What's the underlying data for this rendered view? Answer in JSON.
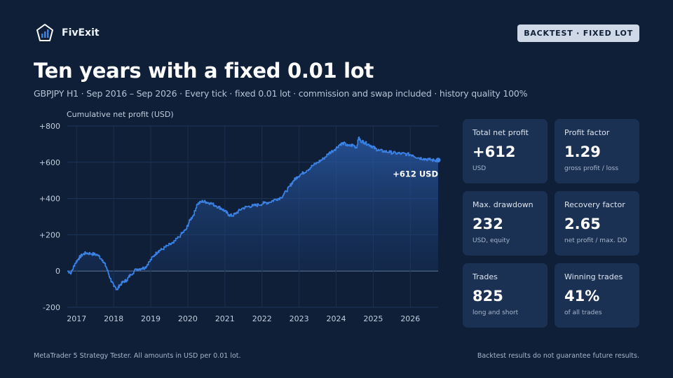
{
  "brand": {
    "name": "FivExit",
    "logo_icon": "pentagon-chart-logo-icon"
  },
  "badge": "BACKTEST · FIXED LOT",
  "title": "Ten years with a fixed 0.01 lot",
  "subtitle": "GBPJPY H1 · Sep 2016 – Sep 2026 · Every tick · fixed 0.01 lot · commission and swap included · history quality 100%",
  "colors": {
    "background": "#0f1f38",
    "line": "#3b82e6",
    "card": "#1b3153",
    "badge": "#cfd8e6"
  },
  "chart_data": {
    "type": "area",
    "ylabel": "Cumulative net profit (USD)",
    "ylim": [
      -200,
      800
    ],
    "yticks": [
      800,
      600,
      400,
      200,
      0,
      -200
    ],
    "ytick_labels": [
      "+800",
      "+600",
      "+400",
      "+200",
      "0",
      "-200"
    ],
    "xlim": [
      2016.75,
      2026.75
    ],
    "xticks": [
      2017,
      2018,
      2019,
      2020,
      2021,
      2022,
      2023,
      2024,
      2025,
      2026
    ],
    "xtick_labels": [
      "2017",
      "2018",
      "2019",
      "2020",
      "2021",
      "2022",
      "2023",
      "2024",
      "2025",
      "2026"
    ],
    "grid": true,
    "end_label": "+612 USD",
    "series": [
      {
        "x": [
          2016.75,
          2016.85,
          2016.95,
          2017.05,
          2017.15,
          2017.25,
          2017.4,
          2017.55,
          2017.7,
          2017.8,
          2017.9,
          2018.0,
          2018.1,
          2018.15,
          2018.25,
          2018.35,
          2018.45,
          2018.6,
          2018.75,
          2018.85,
          2018.95,
          2019.1,
          2019.2,
          2019.3,
          2019.45,
          2019.6,
          2019.8,
          2019.95,
          2020.05,
          2020.15,
          2020.25,
          2020.4,
          2020.5,
          2020.6,
          2020.75,
          2020.9,
          2021.0,
          2021.1,
          2021.2,
          2021.3,
          2021.45,
          2021.6,
          2021.75,
          2021.9,
          2022.05,
          2022.2,
          2022.35,
          2022.5,
          2022.65,
          2022.75,
          2022.85,
          2022.95,
          2023.05,
          2023.2,
          2023.35,
          2023.5,
          2023.65,
          2023.8,
          2023.95,
          2024.1,
          2024.2,
          2024.3,
          2024.45,
          2024.55,
          2024.6,
          2024.65,
          2024.75,
          2024.85,
          2024.95,
          2025.05,
          2025.15,
          2025.3,
          2025.45,
          2025.6,
          2025.75,
          2025.9,
          2026.05,
          2026.2,
          2026.35,
          2026.5,
          2026.65,
          2026.75
        ],
        "y": [
          0,
          -10,
          40,
          70,
          90,
          100,
          95,
          90,
          60,
          20,
          -40,
          -85,
          -100,
          -80,
          -60,
          -50,
          -20,
          10,
          15,
          20,
          50,
          90,
          110,
          120,
          140,
          155,
          200,
          230,
          280,
          310,
          370,
          385,
          380,
          375,
          360,
          345,
          330,
          310,
          305,
          320,
          345,
          355,
          360,
          365,
          375,
          380,
          395,
          405,
          440,
          470,
          500,
          520,
          535,
          555,
          580,
          600,
          620,
          650,
          670,
          700,
          705,
          690,
          695,
          680,
          735,
          720,
          710,
          700,
          690,
          675,
          665,
          660,
          655,
          650,
          648,
          645,
          640,
          625,
          620,
          615,
          610,
          612
        ]
      }
    ]
  },
  "cards": [
    {
      "label": "Total net profit",
      "value": "+612",
      "sub": "USD"
    },
    {
      "label": "Profit factor",
      "value": "1.29",
      "sub": "gross profit / loss"
    },
    {
      "label": "Max. drawdown",
      "value": "232",
      "sub": "USD, equity"
    },
    {
      "label": "Recovery factor",
      "value": "2.65",
      "sub": "net profit / max. DD"
    },
    {
      "label": "Trades",
      "value": "825",
      "sub": "long and short"
    },
    {
      "label": "Winning trades",
      "value": "41%",
      "sub": "of all trades"
    }
  ],
  "footer": {
    "left": "MetaTrader 5 Strategy Tester. All amounts in USD per 0.01 lot.",
    "right": "Backtest results do not guarantee future results."
  }
}
